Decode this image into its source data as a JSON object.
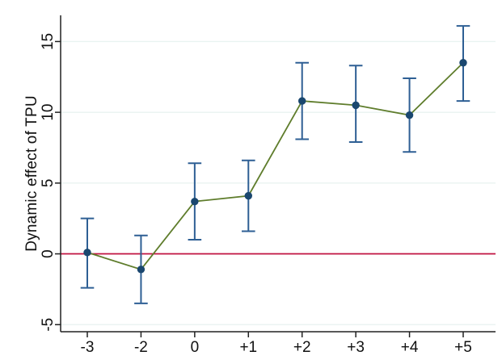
{
  "chart_data": {
    "type": "line",
    "title": "",
    "xlabel": "",
    "ylabel": "Dynamic effect of TPU",
    "categories": [
      "-3",
      "-2",
      "0",
      "+1",
      "+2",
      "+3",
      "+4",
      "+5"
    ],
    "series": [
      {
        "name": "Dynamic effect of TPU",
        "values": [
          0.1,
          -1.1,
          3.7,
          4.1,
          10.8,
          10.5,
          9.8,
          13.5
        ],
        "ci_low": [
          -2.4,
          -3.5,
          1.0,
          1.6,
          8.1,
          7.9,
          7.2,
          10.8
        ],
        "ci_high": [
          2.5,
          1.3,
          6.4,
          6.6,
          13.5,
          13.3,
          12.4,
          16.1
        ]
      }
    ],
    "yticks": [
      -5,
      0,
      5,
      10,
      15
    ],
    "ylim": [
      -5.5,
      16.85
    ],
    "ref_line_y": 0,
    "grid": "horizontal",
    "legend": "none",
    "marker": "filled-circle",
    "error_bar_caps": true,
    "colors": {
      "marker": "#1a476f",
      "error_bar": "#2e5f94",
      "line": "#5f7d2c",
      "reference_line": "#c11240",
      "gridline": "#e9f3f1",
      "axis": "#202020",
      "text": "#111111",
      "background": "#ffffff"
    }
  }
}
